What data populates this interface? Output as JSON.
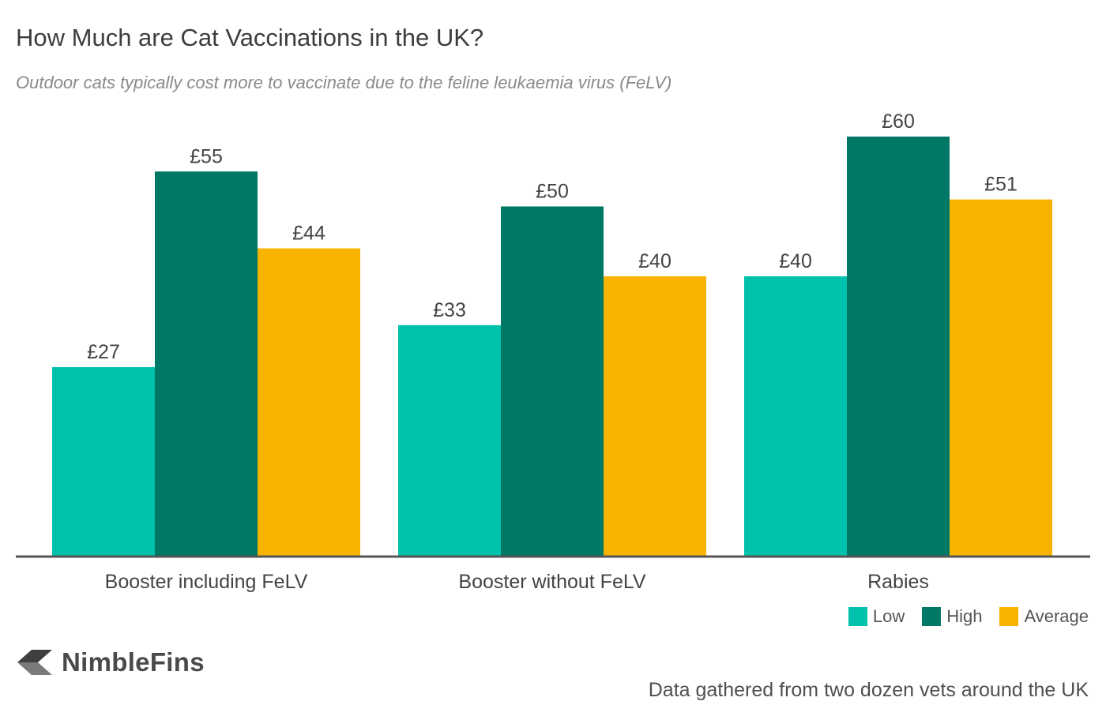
{
  "title": "How Much are Cat Vaccinations in the UK?",
  "subtitle": "Outdoor cats typically cost more to vaccinate due to the feline leukaemia virus (FeLV)",
  "brand": {
    "name": "NimbleFins",
    "logo_icon": "chevron-left-icon"
  },
  "source_note": "Data gathered from two dozen vets around the UK",
  "chart_data": {
    "type": "bar",
    "title": "How Much are Cat Vaccinations in the UK?",
    "subtitle": "Outdoor cats typically cost more to vaccinate due to the feline leukaemia virus (FeLV)",
    "categories": [
      "Booster including FeLV",
      "Booster without FeLV",
      "Rabies"
    ],
    "series": [
      {
        "name": "Low",
        "color": "#00c1ab",
        "values": [
          27,
          33,
          40
        ],
        "labels": [
          "£27",
          "£33",
          "£40"
        ]
      },
      {
        "name": "High",
        "color": "#007866",
        "values": [
          55,
          50,
          60
        ],
        "labels": [
          "£55",
          "£50",
          "£60"
        ]
      },
      {
        "name": "Average",
        "color": "#f8b300",
        "values": [
          44,
          40,
          51
        ],
        "labels": [
          "£44",
          "£40",
          "£51"
        ]
      }
    ],
    "xlabel": "",
    "ylabel": "",
    "ylim": [
      0,
      60
    ],
    "grid": false,
    "legend_position": "bottom-right",
    "axis_color": "#555555"
  }
}
